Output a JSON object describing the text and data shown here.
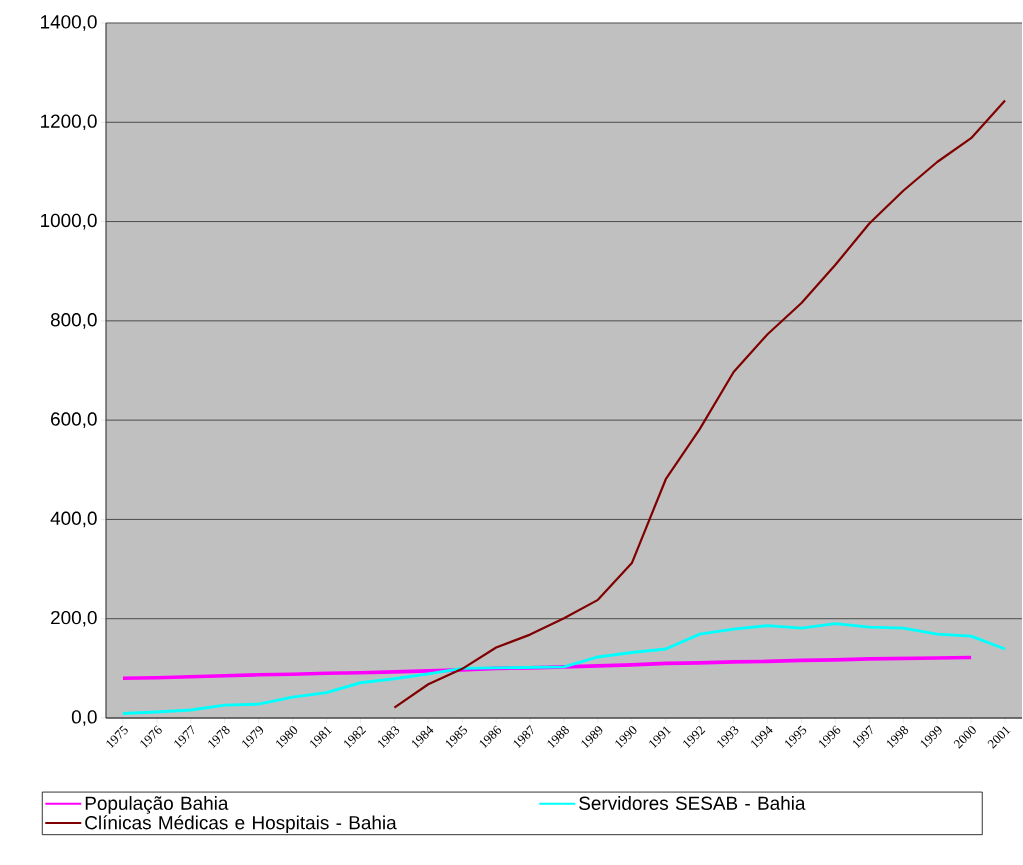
{
  "chart_data": {
    "type": "line",
    "categories": [
      "1975",
      "1976",
      "1977",
      "1978",
      "1979",
      "1980",
      "1981",
      "1982",
      "1983",
      "1984",
      "1985",
      "1986",
      "1987",
      "1988",
      "1989",
      "1990",
      "1991",
      "1992",
      "1993",
      "1994",
      "1995",
      "1996",
      "1997",
      "1998",
      "1999",
      "2000",
      "2001"
    ],
    "series": [
      {
        "name": "População Bahia",
        "color": "#ff00ff",
        "values": [
          80,
          81,
          83,
          85,
          87,
          88,
          90,
          91,
          93,
          95,
          97,
          100,
          101,
          103,
          105,
          107,
          110,
          111,
          113,
          114,
          116,
          117,
          119,
          120,
          121,
          122,
          null
        ]
      },
      {
        "name": "Servidores SESAB - Bahia",
        "color": "#00ffff",
        "values": [
          9,
          12,
          16,
          26,
          28,
          42,
          51,
          71,
          79,
          89,
          100,
          101,
          102,
          103,
          123,
          132,
          139,
          169,
          179,
          186,
          181,
          190,
          183,
          181,
          169,
          165,
          139
        ]
      },
      {
        "name": "Clínicas Médicas e Hospitais - Bahia",
        "color": "#800000",
        "values": [
          null,
          null,
          null,
          null,
          null,
          null,
          null,
          null,
          21,
          68,
          99,
          142,
          168,
          201,
          238,
          312,
          481,
          582,
          697,
          773,
          836,
          913,
          996,
          1062,
          1120,
          1168,
          1244
        ]
      }
    ],
    "ylim": [
      0,
      1400
    ],
    "yticks": [
      {
        "value": 0,
        "label": "0,0"
      },
      {
        "value": 200,
        "label": "200,0"
      },
      {
        "value": 400,
        "label": "400,0"
      },
      {
        "value": 600,
        "label": "600,0"
      },
      {
        "value": 800,
        "label": "800,0"
      },
      {
        "value": 1000,
        "label": "1000,0"
      },
      {
        "value": 1200,
        "label": "1200,0"
      },
      {
        "value": 1400,
        "label": "1400,0"
      }
    ],
    "grid": "y",
    "legend": "bottom",
    "marker": "none",
    "line_style": "solid"
  }
}
